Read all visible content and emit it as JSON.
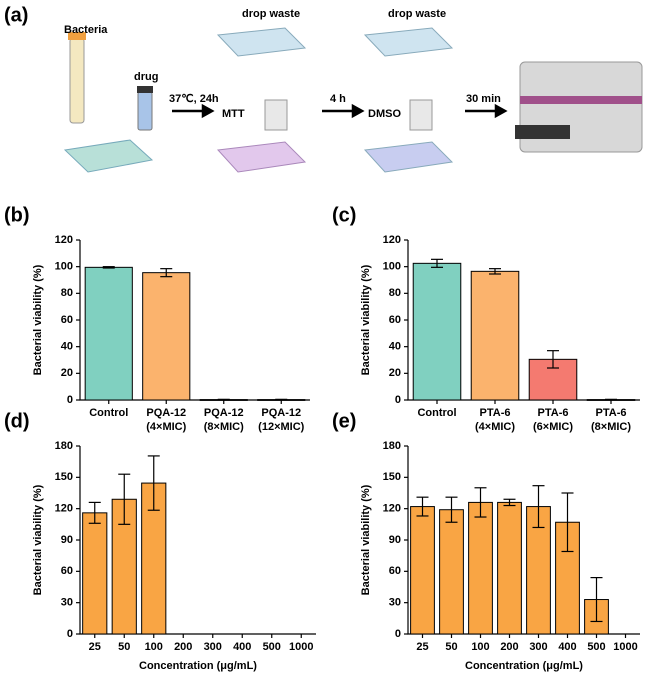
{
  "schematic": {
    "panel_label": "(a)",
    "labels": [
      "Bacteria",
      "drug",
      "37℃, 24h",
      "MTT",
      "drop waste",
      "drop waste",
      "4 h",
      "DMSO",
      "30 min"
    ]
  },
  "chart_data": [
    {
      "type": "bar",
      "panel_label": "(b)",
      "ylabel": "Bacterial viability (%)",
      "categories": [
        "Control",
        "PQA-12\n(4×MIC)",
        "PQA-12\n(8×MIC)",
        "PQA-12\n(12×MIC)"
      ],
      "values": [
        99.5,
        95.5,
        0.3,
        0.3
      ],
      "errors": [
        0.5,
        3,
        0.2,
        0.2
      ],
      "colors": [
        "#80d0c0",
        "#fbb36d",
        "#fbb36d",
        "#fbb36d"
      ],
      "ylim": [
        0,
        120
      ],
      "yticks": [
        0,
        20,
        40,
        60,
        80,
        100,
        120
      ]
    },
    {
      "type": "bar",
      "panel_label": "(c)",
      "ylabel": "Bacterial viability (%)",
      "categories": [
        "Control",
        "PTA-6\n(4×MIC)",
        "PTA-6\n(6×MIC)",
        "PTA-6\n(8×MIC)"
      ],
      "values": [
        102.5,
        96.5,
        30.5,
        0.3
      ],
      "errors": [
        3,
        2,
        6.5,
        0.2
      ],
      "colors": [
        "#80d0c0",
        "#fbb36d",
        "#f47a70",
        "#f47a70"
      ],
      "ylim": [
        0,
        120
      ],
      "yticks": [
        0,
        20,
        40,
        60,
        80,
        100,
        120
      ]
    },
    {
      "type": "bar",
      "panel_label": "(d)",
      "ylabel": "Bacterial viability (%)",
      "xlabel": "Concentration (μg/mL)",
      "categories": [
        "25",
        "50",
        "100",
        "200",
        "300",
        "400",
        "500",
        "1000"
      ],
      "values": [
        116,
        129,
        144.5,
        null,
        null,
        null,
        null,
        null
      ],
      "errors": [
        10,
        24,
        26,
        null,
        null,
        null,
        null,
        null
      ],
      "color": "#f9a544",
      "ylim": [
        0,
        180
      ],
      "yticks": [
        0,
        30,
        60,
        90,
        120,
        150,
        180
      ]
    },
    {
      "type": "bar",
      "panel_label": "(e)",
      "ylabel": "Bacterial viability (%)",
      "xlabel": "Concentration (μg/mL)",
      "categories": [
        "25",
        "50",
        "100",
        "200",
        "300",
        "400",
        "500",
        "1000"
      ],
      "values": [
        122,
        119,
        126,
        126,
        122,
        107,
        33,
        null
      ],
      "errors": [
        9,
        12,
        14,
        3,
        20,
        28,
        21,
        null
      ],
      "color": "#f9a544",
      "ylim": [
        0,
        180
      ],
      "yticks": [
        0,
        30,
        60,
        90,
        120,
        150,
        180
      ]
    }
  ]
}
